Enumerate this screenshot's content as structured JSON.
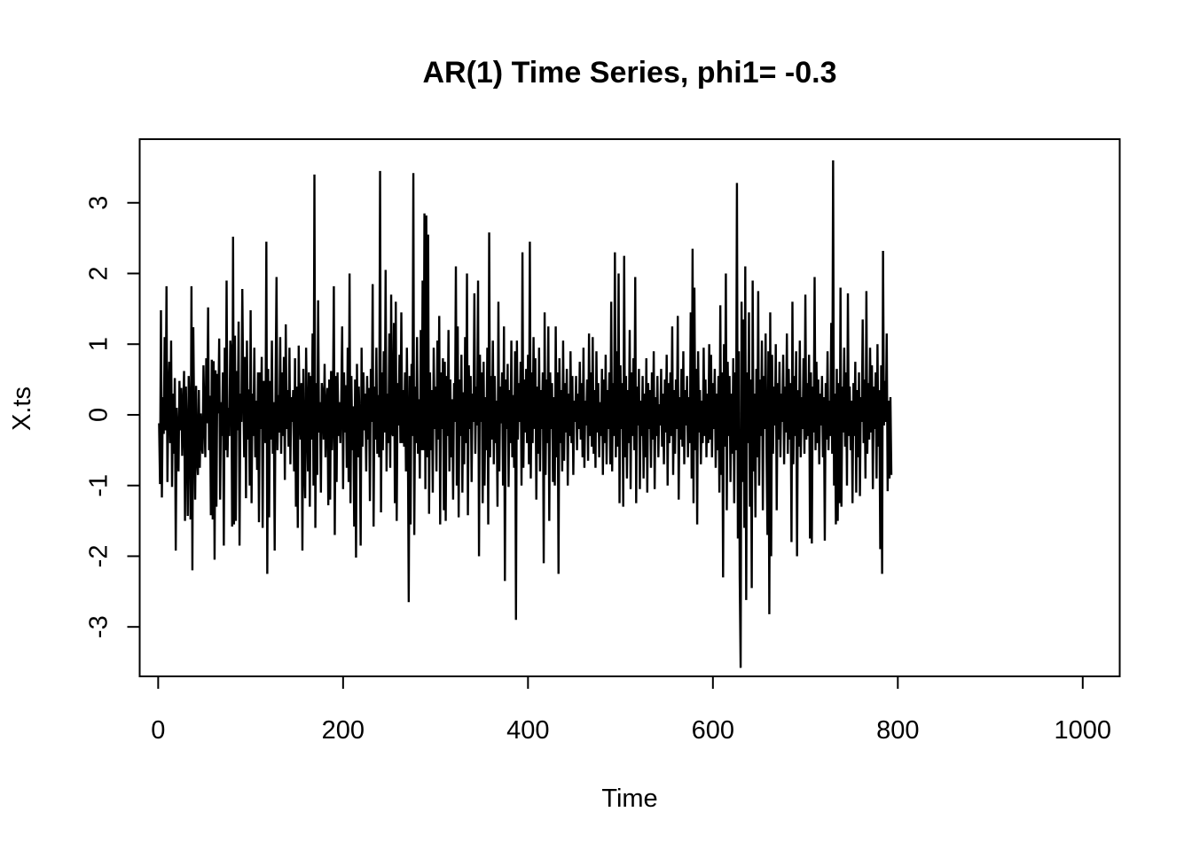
{
  "chart_data": {
    "type": "line",
    "title": "AR(1) Time Series, phi1= -0.3",
    "xlabel": "Time",
    "ylabel": "X.ts",
    "xlim": [
      -20,
      1040
    ],
    "ylim": [
      -3.7,
      3.9
    ],
    "x_ticks": [
      0,
      200,
      400,
      600,
      800,
      1000
    ],
    "x_tick_labels": [
      "0",
      "200",
      "400",
      "600",
      "800",
      "1000"
    ],
    "y_ticks": [
      -3,
      -2,
      -1,
      0,
      1,
      2,
      3
    ],
    "y_tick_labels": [
      "-3",
      "-2",
      "-1",
      "0",
      "1",
      "2",
      "3"
    ],
    "grid": false,
    "legend": "none",
    "line_color": "#000000",
    "series": [
      {
        "x_start": 1,
        "x_step": 1,
        "values": [
          -0.12,
          -0.98,
          1.48,
          -1.17,
          0.25,
          -0.27,
          1.1,
          -0.22,
          1.82,
          -0.95,
          0.18,
          0.75,
          -0.4,
          1.05,
          -1.02,
          0.3,
          -0.55,
          0.52,
          -1.92,
          0.1,
          -0.35,
          -0.8,
          0.48,
          -0.22,
          0.38,
          -0.58,
          0.05,
          0.62,
          -1.5,
          0.4,
          -0.3,
          -1.43,
          0.55,
          -0.1,
          -1.48,
          1.82,
          -2.2,
          1.24,
          -0.18,
          -1.2,
          0.41,
          -0.6,
          -0.85,
          0.35,
          -0.75,
          0.02,
          -0.4,
          -0.55,
          0.7,
          -0.06,
          -0.6,
          0.8,
          -0.12,
          1.52,
          -0.5,
          0.27,
          -1.42,
          0.78,
          -1.48,
          0.76,
          -2.05,
          0.63,
          -1.3,
          0.58,
          0.02,
          1.08,
          -1.2,
          0.18,
          -0.3,
          0.6,
          -1.85,
          0.95,
          -0.5,
          1.9,
          -0.6,
          0.1,
          -0.3,
          1.05,
          0.85,
          -1.58,
          2.52,
          -1.55,
          1.12,
          -1.5,
          0.62,
          -0.22,
          1.32,
          -1.85,
          0.3,
          -0.1,
          1.78,
          0.4,
          -0.6,
          0.82,
          -1.18,
          1.05,
          -0.35,
          0.36,
          -1.0,
          1.48,
          -1.25,
          0.3,
          -0.3,
          0.95,
          -0.6,
          0.2,
          -0.78,
          0.6,
          -1.52,
          0.6,
          -0.2,
          0.82,
          -1.6,
          0.48,
          0.1,
          -0.4,
          2.45,
          -2.25,
          0.65,
          -1.45,
          0.48,
          -0.35,
          1.05,
          -0.55,
          0.18,
          -1.92,
          0.45,
          1.95,
          -0.5,
          0.28,
          -0.25,
          1.1,
          -0.55,
          0.6,
          -0.3,
          0.82,
          -0.92,
          1.28,
          -0.2,
          0.35,
          -0.45,
          0.95,
          -0.7,
          0.25,
          -0.1,
          0.35,
          -0.8,
          0.8,
          -1.3,
          0.4,
          -1.6,
          0.98,
          0.1,
          -0.35,
          0.45,
          -1.92,
          0.65,
          -0.65,
          -1.18,
          0.95,
          -0.1,
          -0.8,
          0.6,
          -1.3,
          0.55,
          -0.35,
          1.15,
          -1.0,
          3.4,
          -1.6,
          0.45,
          -0.85,
          1.62,
          -0.25,
          0.18,
          -1.1,
          0.45,
          0.25,
          -0.35,
          0.72,
          -0.6,
          0.1,
          0.38,
          -1.28,
          0.5,
          -1.2,
          0.62,
          -0.5,
          0.1,
          1.82,
          -1.7,
          0.55,
          -0.95,
          0.6,
          -0.3,
          0.18,
          -0.4,
          0.2,
          1.25,
          -1.05,
          0.6,
          -0.25,
          0.42,
          -0.75,
          0.95,
          -0.95,
          2.0,
          -1.25,
          0.55,
          -0.5,
          0.12,
          -1.58,
          0.5,
          -2.02,
          0.72,
          -0.6,
          0.4,
          -0.2,
          -1.85,
          0.95,
          -0.45,
          0.6,
          -0.22,
          0.3,
          -0.8,
          0.55,
          -0.35,
          0.38,
          -1.22,
          0.65,
          -0.1,
          1.85,
          -1.58,
          0.4,
          -0.35,
          0.95,
          -0.55,
          0.28,
          -0.6,
          3.45,
          -1.38,
          0.6,
          -0.5,
          0.9,
          -0.25,
          2.05,
          -0.8,
          0.3,
          -0.4,
          1.15,
          -0.75,
          1.7,
          -0.25,
          -0.3,
          1.3,
          -1.25,
          1.6,
          -1.5,
          0.45,
          -0.15,
          0.85,
          -0.4,
          1.45,
          -0.4,
          0.35,
          -0.45,
          0.6,
          -0.8,
          0.95,
          -0.2,
          -2.65,
          0.55,
          -1.55,
          0.72,
          -0.3,
          3.42,
          -1.7,
          0.4,
          -0.4,
          1.1,
          -0.55,
          0.22,
          -0.9,
          1.2,
          -0.5,
          1.9,
          -0.5,
          2.85,
          -1.05,
          2.82,
          -0.6,
          2.55,
          -1.4,
          0.6,
          -0.5,
          0.35,
          -1.1,
          0.95,
          -0.2,
          0.4,
          -0.8,
          1.05,
          -0.35,
          1.4,
          -1.55,
          0.6,
          -0.2,
          0.8,
          -1.35,
          0.75,
          -1.5,
          0.55,
          -0.3,
          1.2,
          -0.8,
          0.5,
          -0.6,
          0.22,
          -1.2,
          0.45,
          -0.1,
          2.1,
          -1.0,
          1.25,
          -1.45,
          0.5,
          -0.3,
          0.85,
          -1.1,
          0.32,
          -0.7,
          1.1,
          -0.4,
          2.0,
          -1.42,
          0.7,
          -0.2,
          0.55,
          -0.95,
          0.3,
          -0.1,
          1.72,
          -0.55,
          0.4,
          -0.15,
          1.9,
          -2.0,
          0.85,
          -0.1,
          0.6,
          -1.25,
          0.75,
          -1.0,
          0.25,
          -0.5,
          0.95,
          -1.55,
          2.58,
          -0.6,
          0.55,
          -0.35,
          1.05,
          -0.7,
          0.55,
          -0.4,
          0.2,
          -1.3,
          1.6,
          -0.8,
          0.4,
          -0.12,
          0.6,
          -1.0,
          1.25,
          -2.35,
          0.5,
          -0.2,
          0.72,
          -1.02,
          0.35,
          -0.4,
          1.05,
          -0.6,
          0.28,
          -0.75,
          0.9,
          -2.9,
          1.05,
          -0.35,
          0.45,
          -0.1,
          0.75,
          -1.0,
          2.3,
          -0.75,
          0.5,
          -0.25,
          0.65,
          -0.4,
          0.85,
          -0.7,
          2.45,
          -0.9,
          0.6,
          -0.4,
          1.1,
          -0.2,
          0.8,
          -1.2,
          0.4,
          -0.55,
          0.95,
          -0.8,
          0.35,
          -0.2,
          0.6,
          -2.1,
          1.45,
          -0.85,
          0.5,
          -0.4,
          1.25,
          -1.5,
          0.6,
          -0.2,
          0.45,
          -0.95,
          0.25,
          -1.0,
          1.25,
          -0.6,
          0.6,
          -2.25,
          0.8,
          -0.4,
          0.35,
          -0.8,
          1.05,
          -0.65,
          0.45,
          -0.25,
          0.65,
          -1.0,
          0.3,
          -0.3,
          0.9,
          -0.4,
          0.55,
          -0.85,
          0.2,
          -0.1,
          0.55,
          -0.5,
          0.3,
          -0.2,
          0.75,
          -0.35,
          0.45,
          -0.6,
          0.95,
          -0.75,
          0.2,
          -0.15,
          0.5,
          -0.65,
          1.15,
          -0.3,
          0.6,
          -0.45,
          1.1,
          -0.55,
          0.35,
          -0.75,
          0.9,
          -0.25,
          0.45,
          -0.6,
          0.18,
          -0.3,
          0.65,
          -0.85,
          0.5,
          -0.4,
          0.85,
          -0.7,
          0.35,
          -0.2,
          0.6,
          -0.7,
          1.6,
          -0.8,
          0.45,
          -0.3,
          2.3,
          -0.6,
          0.9,
          -0.45,
          2.0,
          -1.25,
          0.7,
          -0.2,
          0.45,
          -1.3,
          2.25,
          -0.6,
          0.55,
          -0.9,
          0.35,
          -0.4,
          1.2,
          -1.05,
          0.6,
          -0.3,
          0.8,
          -0.5,
          1.95,
          -1.25,
          0.4,
          -0.15,
          0.65,
          -1.05,
          0.2,
          -0.3,
          0.55,
          -0.9,
          0.3,
          -0.6,
          0.8,
          -1.1,
          0.45,
          -0.2,
          0.35,
          -0.75,
          0.6,
          -0.35,
          0.9,
          -1.05,
          0.25,
          -0.3,
          0.55,
          -0.6,
          0.15,
          -0.15,
          0.65,
          -0.45,
          0.3,
          -0.7,
          0.5,
          -0.25,
          0.85,
          -1.0,
          0.45,
          -0.4,
          0.6,
          -0.3,
          1.25,
          -0.85,
          0.35,
          -0.55,
          0.5,
          -0.2,
          1.4,
          -1.2,
          0.25,
          -0.35,
          0.65,
          -0.45,
          0.9,
          -0.7,
          0.35,
          -0.15,
          0.55,
          -0.6,
          0.25,
          -0.4,
          1.45,
          -0.9,
          2.35,
          -1.25,
          1.8,
          -0.5,
          0.65,
          -1.55,
          0.9,
          -0.25,
          0.35,
          -0.7,
          0.2,
          -0.4,
          0.95,
          -0.3,
          0.5,
          -0.6,
          0.3,
          -0.4,
          1.0,
          -0.35,
          0.85,
          -0.6,
          0.45,
          -0.2,
          0.65,
          -0.75,
          0.3,
          -0.5,
          0.55,
          -1.1,
          1.55,
          -0.85,
          0.6,
          -2.3,
          1.0,
          -0.45,
          2.0,
          -1.35,
          0.75,
          -0.3,
          0.55,
          -0.95,
          0.3,
          -0.55,
          0.8,
          -1.25,
          0.6,
          -0.5,
          3.28,
          -1.75,
          0.9,
          -2.3,
          -3.58,
          1.6,
          -0.95,
          1.35,
          -1.6,
          2.1,
          -2.62,
          0.6,
          -0.4,
          1.45,
          -1.3,
          0.5,
          -2.45,
          1.9,
          -0.8,
          0.3,
          -1.45,
          0.65,
          -0.6,
          1.75,
          -1.0,
          0.5,
          -0.3,
          1.05,
          -1.35,
          0.55,
          -0.2,
          1.15,
          -0.5,
          -1.7,
          0.9,
          -2.82,
          1.45,
          -2.0,
          0.85,
          -0.55,
          0.4,
          -0.15,
          1.0,
          -1.35,
          0.45,
          -0.35,
          0.75,
          -0.6,
          0.3,
          -0.1,
          0.85,
          -0.7,
          0.4,
          -0.25,
          1.15,
          -0.55,
          0.65,
          -0.35,
          0.45,
          -1.8,
          1.6,
          -0.7,
          0.55,
          -0.3,
          0.9,
          -2.0,
          0.35,
          -0.45,
          1.05,
          -0.6,
          0.25,
          -0.2,
          0.8,
          -0.55,
          1.7,
          -0.35,
          0.45,
          -0.3,
          0.85,
          -1.75,
          0.6,
          -1.82,
          0.4,
          -0.25,
          1.95,
          -0.5,
          0.75,
          -0.4,
          0.5,
          -0.7,
          0.3,
          -0.15,
          0.55,
          -0.6,
          0.25,
          -1.78,
          0.45,
          -0.35,
          0.9,
          -0.5,
          0.2,
          -0.3,
          1.3,
          -0.55,
          3.6,
          -1.0,
          0.3,
          -1.55,
          0.65,
          -1.5,
          0.45,
          -1.25,
          1.8,
          -1.3,
          0.4,
          -0.25,
          0.95,
          -0.45,
          0.6,
          -1.0,
          1.72,
          -0.3,
          0.4,
          -0.5,
          0.2,
          -1.25,
          0.45,
          -0.3,
          0.75,
          -1.1,
          0.35,
          -0.6,
          0.6,
          -1.15,
          0.25,
          -0.1,
          1.35,
          -0.4,
          0.5,
          -0.9,
          1.75,
          -0.55,
          0.45,
          -0.35,
          0.95,
          -0.25,
          0.7,
          -1.05,
          0.4,
          -0.2,
          0.6,
          -0.9,
          1.0,
          -0.45,
          0.35,
          -1.9,
          0.7,
          -2.25,
          2.32,
          -0.15,
          0.48,
          -0.1,
          1.15,
          -1.08,
          0.2,
          -0.9,
          0.25,
          -0.85
        ]
      }
    ]
  }
}
